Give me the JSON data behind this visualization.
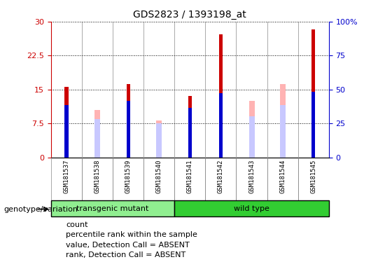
{
  "title": "GDS2823 / 1393198_at",
  "samples": [
    "GSM181537",
    "GSM181538",
    "GSM181539",
    "GSM181540",
    "GSM181541",
    "GSM181542",
    "GSM181543",
    "GSM181544",
    "GSM181545"
  ],
  "count_values": [
    15.5,
    null,
    16.2,
    null,
    13.5,
    27.2,
    null,
    null,
    28.2
  ],
  "percentile_rank": [
    11.5,
    null,
    12.5,
    null,
    11.0,
    14.2,
    null,
    null,
    14.5
  ],
  "absent_value": [
    null,
    10.5,
    null,
    8.2,
    null,
    null,
    12.5,
    16.2,
    null
  ],
  "absent_rank": [
    null,
    8.5,
    null,
    7.5,
    null,
    null,
    9.0,
    11.5,
    null
  ],
  "left_ylim": [
    0,
    30
  ],
  "right_ylim": [
    0,
    100
  ],
  "left_yticks": [
    0,
    7.5,
    15,
    22.5,
    30
  ],
  "right_yticks": [
    0,
    25,
    50,
    75,
    100
  ],
  "left_yticklabels": [
    "0",
    "7.5",
    "15",
    "22.5",
    "30"
  ],
  "right_yticklabels": [
    "0",
    "25",
    "50",
    "75",
    "100%"
  ],
  "count_color": "#cc0000",
  "percentile_color": "#0000cc",
  "absent_value_color": "#ffb3b3",
  "absent_rank_color": "#c8c8ff",
  "transgenic_indices": [
    0,
    1,
    2,
    3
  ],
  "wildtype_indices": [
    4,
    5,
    6,
    7,
    8
  ],
  "transgenic_label": "transgenic mutant",
  "wildtype_label": "wild type",
  "group_label": "genotype/variation",
  "grid_color": "black",
  "bg_color": "#c8c8c8",
  "group_bg_transgenic": "#90ee90",
  "group_bg_wildtype": "#32cd32",
  "legend_items": [
    {
      "color": "#cc0000",
      "label": "count"
    },
    {
      "color": "#0000cc",
      "label": "percentile rank within the sample"
    },
    {
      "color": "#ffb3b3",
      "label": "value, Detection Call = ABSENT"
    },
    {
      "color": "#c8c8ff",
      "label": "rank, Detection Call = ABSENT"
    }
  ]
}
